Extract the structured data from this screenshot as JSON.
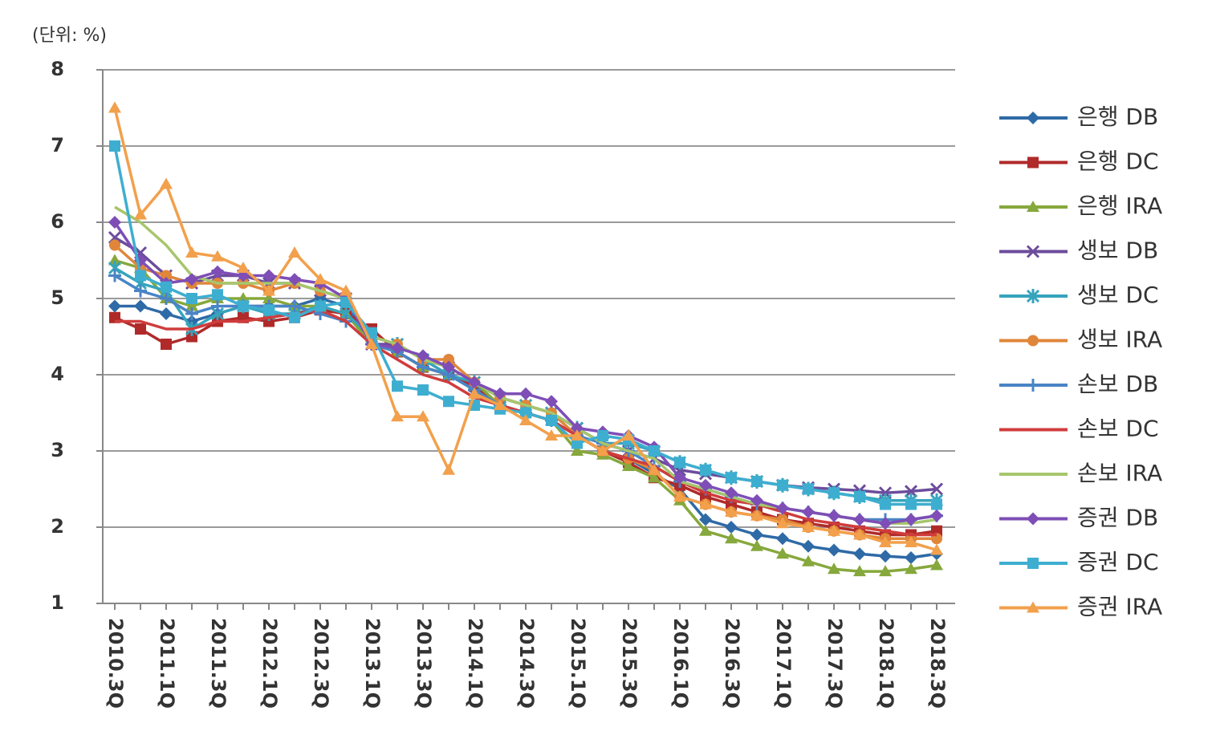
{
  "chart_data": {
    "type": "line",
    "unit_label": "(단위: %)",
    "categories": [
      "2010.3Q",
      null,
      "2011.1Q",
      null,
      "2011.3Q",
      null,
      "2012.1Q",
      null,
      "2012.3Q",
      null,
      "2013.1Q",
      null,
      "2013.3Q",
      null,
      "2014.1Q",
      null,
      "2014.3Q",
      null,
      "2015.1Q",
      null,
      "2015.3Q",
      null,
      "2016.1Q",
      null,
      "2016.3Q",
      null,
      "2017.1Q",
      null,
      "2017.3Q",
      null,
      "2018.1Q",
      null,
      "2018.3Q"
    ],
    "ylim": [
      1,
      8
    ],
    "yticks": [
      1,
      2,
      3,
      4,
      5,
      6,
      7,
      8
    ],
    "grid": true,
    "legend": "right",
    "series": [
      {
        "name": "은행 DB",
        "color": "#2e6aa6",
        "marker": "diamond",
        "values": [
          4.9,
          4.9,
          4.8,
          4.7,
          4.8,
          4.9,
          4.9,
          4.9,
          5.0,
          4.9,
          4.4,
          4.3,
          4.1,
          4.0,
          3.8,
          3.6,
          3.5,
          3.4,
          3.2,
          3.0,
          2.9,
          2.7,
          2.5,
          2.1,
          2.0,
          1.9,
          1.85,
          1.75,
          1.7,
          1.65,
          1.62,
          1.6,
          1.65
        ]
      },
      {
        "name": "은행 DC",
        "color": "#b02a2a",
        "marker": "square",
        "values": [
          4.75,
          4.6,
          4.4,
          4.5,
          4.7,
          4.75,
          4.7,
          4.75,
          4.85,
          4.8,
          4.6,
          4.3,
          4.1,
          4.0,
          3.85,
          3.6,
          3.5,
          3.4,
          3.2,
          3.0,
          2.85,
          2.65,
          2.55,
          2.4,
          2.3,
          2.2,
          2.1,
          2.05,
          2.0,
          1.95,
          1.9,
          1.9,
          1.95
        ]
      },
      {
        "name": "은행 IRA",
        "color": "#86a83c",
        "marker": "triangle",
        "values": [
          5.5,
          5.4,
          5.0,
          4.9,
          5.0,
          5.0,
          5.0,
          4.9,
          4.9,
          4.8,
          4.4,
          4.3,
          4.1,
          4.0,
          3.9,
          3.6,
          3.5,
          3.4,
          3.0,
          2.95,
          2.8,
          2.65,
          2.35,
          1.95,
          1.85,
          1.75,
          1.65,
          1.55,
          1.45,
          1.42,
          1.42,
          1.45,
          1.5
        ]
      },
      {
        "name": "생보 DB",
        "color": "#6c4c9c",
        "marker": "x",
        "values": [
          5.8,
          5.6,
          5.3,
          5.2,
          5.3,
          5.3,
          5.2,
          5.2,
          5.1,
          5.0,
          4.4,
          4.4,
          4.2,
          4.1,
          3.9,
          3.7,
          3.6,
          3.5,
          3.3,
          3.1,
          3.0,
          2.9,
          2.75,
          2.7,
          2.65,
          2.6,
          2.55,
          2.52,
          2.5,
          2.48,
          2.45,
          2.47,
          2.5
        ]
      },
      {
        "name": "생보 DC",
        "color": "#36a4bc",
        "marker": "asterisk",
        "values": [
          5.4,
          5.2,
          5.1,
          4.6,
          4.8,
          4.9,
          4.8,
          4.8,
          4.9,
          4.8,
          4.5,
          4.4,
          4.2,
          4.0,
          3.9,
          3.7,
          3.6,
          3.5,
          3.3,
          3.1,
          3.1,
          3.0,
          2.85,
          2.75,
          2.65,
          2.6,
          2.55,
          2.5,
          2.45,
          2.4,
          2.35,
          2.35,
          2.35
        ]
      },
      {
        "name": "생보 IRA",
        "color": "#e0863a",
        "marker": "circle",
        "values": [
          5.7,
          5.4,
          5.3,
          5.2,
          5.2,
          5.2,
          5.1,
          5.2,
          5.1,
          5.0,
          4.5,
          4.4,
          4.2,
          4.2,
          3.9,
          3.7,
          3.6,
          3.5,
          3.2,
          3.0,
          2.9,
          2.75,
          2.4,
          2.3,
          2.2,
          2.15,
          2.1,
          2.0,
          1.95,
          1.9,
          1.85,
          1.85,
          1.85
        ]
      },
      {
        "name": "손보 DB",
        "color": "#4a84c6",
        "marker": "plus",
        "values": [
          5.3,
          5.1,
          5.0,
          4.8,
          4.9,
          4.9,
          4.9,
          4.9,
          4.8,
          4.7,
          4.4,
          4.3,
          4.1,
          4.0,
          3.8,
          3.6,
          3.5,
          3.4,
          3.2,
          3.1,
          3.0,
          2.8,
          2.6,
          2.5,
          2.4,
          2.3,
          2.25,
          2.2,
          2.15,
          2.1,
          2.1,
          2.1,
          2.15
        ]
      },
      {
        "name": "손보 DC",
        "color": "#d03c3c",
        "marker": "none",
        "values": [
          4.7,
          4.7,
          4.6,
          4.6,
          4.7,
          4.7,
          4.75,
          4.8,
          4.85,
          4.7,
          4.4,
          4.2,
          4.0,
          3.9,
          3.7,
          3.6,
          3.5,
          3.4,
          3.2,
          3.0,
          2.9,
          2.8,
          2.6,
          2.45,
          2.35,
          2.3,
          2.2,
          2.1,
          2.05,
          2.0,
          1.95,
          1.9,
          1.9
        ]
      },
      {
        "name": "손보 IRA",
        "color": "#a6c66c",
        "marker": "none",
        "values": [
          6.2,
          6.0,
          5.7,
          5.3,
          5.2,
          5.2,
          5.2,
          5.2,
          5.1,
          5.0,
          4.5,
          4.4,
          4.2,
          4.1,
          3.9,
          3.7,
          3.6,
          3.5,
          3.3,
          3.1,
          3.0,
          2.9,
          2.6,
          2.5,
          2.4,
          2.3,
          2.25,
          2.2,
          2.15,
          2.1,
          2.05,
          2.05,
          2.1
        ]
      },
      {
        "name": "증권 DB",
        "color": "#7e4eb6",
        "marker": "diamond",
        "values": [
          6.0,
          5.5,
          5.2,
          5.25,
          5.35,
          5.3,
          5.3,
          5.25,
          5.2,
          5.0,
          4.4,
          4.35,
          4.25,
          4.1,
          3.9,
          3.75,
          3.75,
          3.65,
          3.3,
          3.25,
          3.2,
          3.05,
          2.65,
          2.55,
          2.45,
          2.35,
          2.25,
          2.2,
          2.15,
          2.1,
          2.05,
          2.1,
          2.15
        ]
      },
      {
        "name": "증권 DC",
        "color": "#3eaed0",
        "marker": "square",
        "values": [
          7.0,
          5.3,
          5.15,
          5.0,
          5.05,
          4.9,
          4.85,
          4.75,
          4.9,
          4.95,
          4.55,
          3.85,
          3.8,
          3.65,
          3.6,
          3.55,
          3.5,
          3.4,
          3.1,
          3.2,
          3.15,
          3.0,
          2.85,
          2.75,
          2.65,
          2.6,
          2.55,
          2.5,
          2.45,
          2.4,
          2.3,
          2.3,
          2.3
        ]
      },
      {
        "name": "증권 IRA",
        "color": "#f2a04c",
        "marker": "triangle",
        "values": [
          7.5,
          6.1,
          6.5,
          5.6,
          5.55,
          5.4,
          5.1,
          5.6,
          5.25,
          5.1,
          4.4,
          3.45,
          3.45,
          2.75,
          3.75,
          3.6,
          3.4,
          3.2,
          3.2,
          3.0,
          3.2,
          2.75,
          2.4,
          2.3,
          2.2,
          2.15,
          2.05,
          2.0,
          1.95,
          1.9,
          1.8,
          1.8,
          1.7
        ]
      }
    ]
  }
}
